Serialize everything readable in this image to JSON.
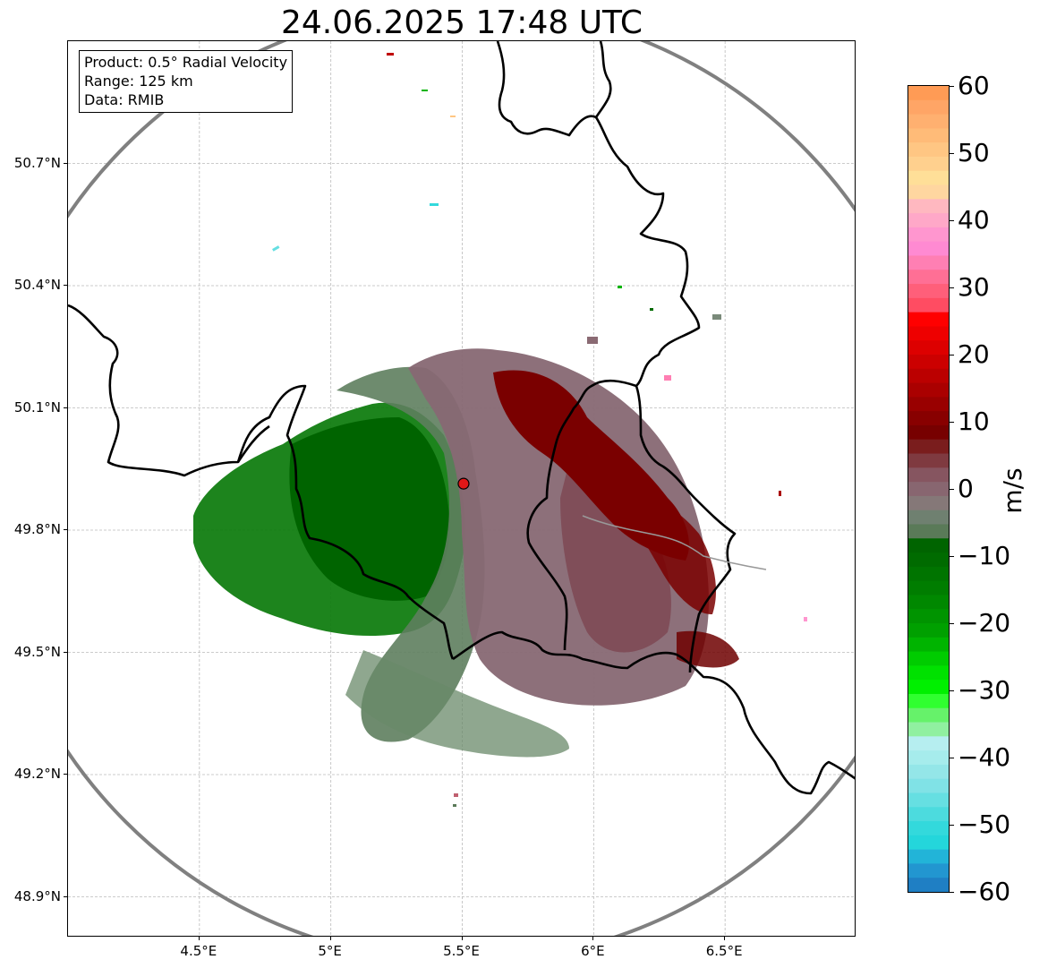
{
  "title": "24.06.2025 17:48 UTC",
  "info": {
    "product": "Product: 0.5° Radial Velocity",
    "range": "Range: 125 km",
    "data": "Data: RMIB"
  },
  "map": {
    "lon_range": [
      4.0,
      7.0
    ],
    "lat_range": [
      48.8,
      51.0
    ],
    "radar_site": {
      "lon": 5.505,
      "lat": 49.914
    },
    "range_circle_km": 125,
    "yticks": [
      "50.7°N",
      "50.4°N",
      "50.1°N",
      "49.8°N",
      "49.5°N",
      "49.2°N",
      "48.9°N"
    ],
    "ytick_values": [
      50.7,
      50.4,
      50.1,
      49.8,
      49.5,
      49.2,
      48.9
    ],
    "xticks": [
      "4.5°E",
      "5°E",
      "5.5°E",
      "6°E",
      "6.5°E"
    ],
    "xtick_values": [
      4.5,
      5.0,
      5.5,
      6.0,
      6.5
    ]
  },
  "colorbar": {
    "label": "m/s",
    "min": -60,
    "max": 60,
    "ticks": [
      "60",
      "50",
      "40",
      "30",
      "20",
      "10",
      "0",
      "−10",
      "−20",
      "−30",
      "−40",
      "−50",
      "−60"
    ],
    "tick_values": [
      60,
      50,
      40,
      30,
      20,
      10,
      0,
      -10,
      -20,
      -30,
      -40,
      -50,
      -60
    ],
    "colors_top_to_bottom": [
      "#ff9b55",
      "#ffa566",
      "#ffb070",
      "#ffbb78",
      "#ffc683",
      "#ffd08e",
      "#ffdf98",
      "#ffd6a0",
      "#ffb8c0",
      "#ffa8c8",
      "#ff96cf",
      "#ff8ad2",
      "#ff7fb3",
      "#ff6f95",
      "#ff5f7a",
      "#ff4c62",
      "#ff0000",
      "#ee0000",
      "#dd0000",
      "#cc0000",
      "#bb0000",
      "#aa0000",
      "#990000",
      "#880000",
      "#770000",
      "#7a1d1d",
      "#7f3a40",
      "#865560",
      "#886670",
      "#857878",
      "#6f8070",
      "#5a7a58",
      "#006400",
      "#006b00",
      "#007400",
      "#007d00",
      "#008800",
      "#009400",
      "#00a000",
      "#00b400",
      "#00cc00",
      "#00e100",
      "#00f000",
      "#30ff30",
      "#66f26a",
      "#90f0a0",
      "#b6eef0",
      "#a6ecec",
      "#94e6e8",
      "#80e2e6",
      "#66dfe2",
      "#4cdbde",
      "#33d9dc",
      "#24d6db",
      "#22b4d8",
      "#2296d0",
      "#1f7fc4"
    ]
  }
}
